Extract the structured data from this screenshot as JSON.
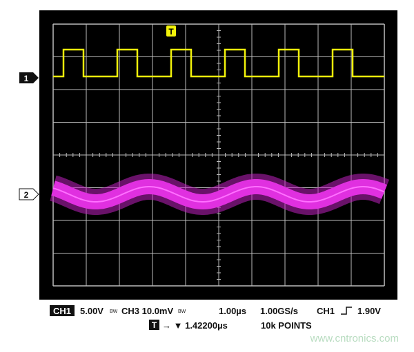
{
  "screen": {
    "trigger_marker": "T",
    "channel_markers": [
      "1",
      "2"
    ]
  },
  "status": {
    "line1": {
      "ch1_badge": "CH1",
      "ch1_scale": "5.00V",
      "ch1_bw": "BW",
      "ch3_scale": "CH3 10.0mV",
      "ch3_bw": "BW",
      "timebase": "1.00µs",
      "sample_rate": "1.00GS/s",
      "trigger_source": "CH1",
      "trigger_level": "1.90V"
    },
    "line2": {
      "trigger_badge": "T",
      "trigger_position": "→ ▼ 1.42200µs",
      "record_length": "10k POINTS"
    }
  },
  "watermark": "www.cntronics.com"
}
